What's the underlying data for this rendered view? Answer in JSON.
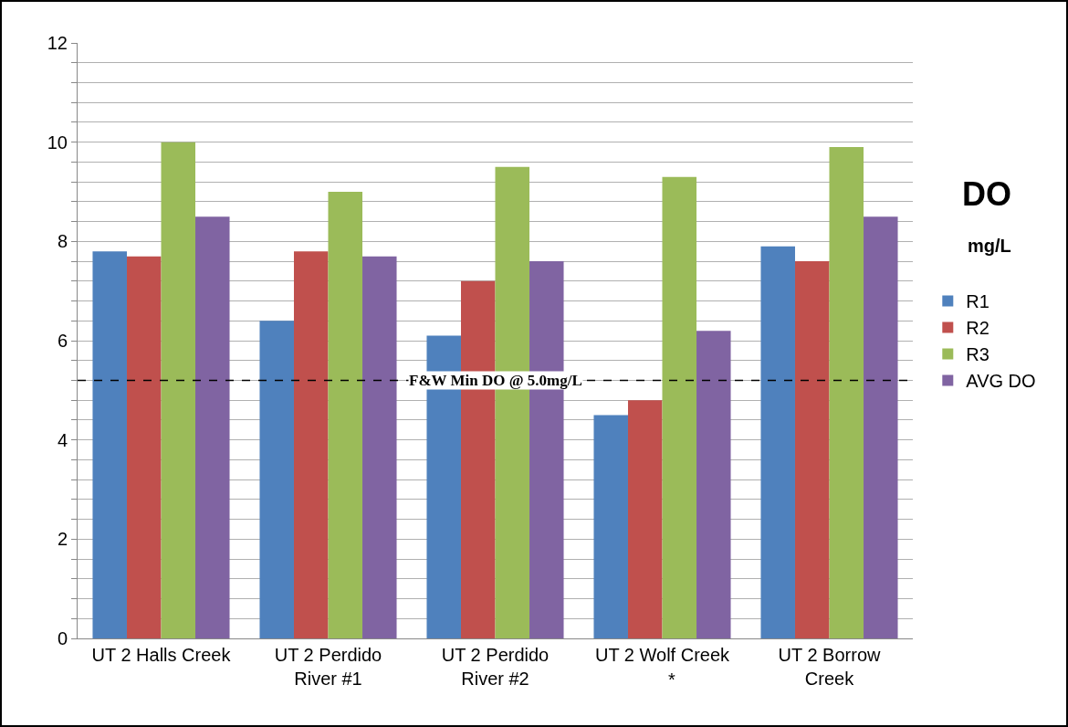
{
  "chart_data": {
    "type": "bar",
    "categories": [
      "UT 2 Halls Creek",
      "UT 2 Perdido River #1",
      "UT 2 Perdido River #2",
      "UT 2 Wolf Creek",
      "UT 2 Borrow Creek"
    ],
    "series": [
      {
        "name": "R1",
        "color": "#4f81bd",
        "values": [
          7.8,
          6.4,
          6.1,
          4.5,
          7.9
        ]
      },
      {
        "name": "R2",
        "color": "#c0504d",
        "values": [
          7.7,
          7.8,
          7.2,
          4.8,
          7.6
        ]
      },
      {
        "name": "R3",
        "color": "#9bbb59",
        "values": [
          10.0,
          9.0,
          9.5,
          9.3,
          9.9
        ]
      },
      {
        "name": "AVG DO",
        "color": "#8064a2",
        "values": [
          8.5,
          7.7,
          7.6,
          6.2,
          8.5
        ]
      }
    ],
    "ylim": [
      0,
      12
    ],
    "yticks": [
      0,
      {
        "value": 0.4,
        "label": null
      },
      {
        "value": 0.8,
        "label": null
      },
      {
        "value": 1.2,
        "label": null
      },
      {
        "value": 1.6,
        "label": null
      },
      2,
      {
        "value": 2.4,
        "label": null
      },
      {
        "value": 2.8,
        "label": null
      },
      {
        "value": 3.2,
        "label": null
      },
      {
        "value": 3.6,
        "label": null
      },
      4,
      {
        "value": 4.4,
        "label": null
      },
      {
        "value": 4.8,
        "label": null
      },
      {
        "value": 5.2,
        "label": null
      },
      {
        "value": 5.6,
        "label": null
      },
      6,
      {
        "value": 6.4,
        "label": null
      },
      {
        "value": 6.8,
        "label": null
      },
      {
        "value": 7.2,
        "label": null
      },
      {
        "value": 7.6,
        "label": null
      },
      8,
      {
        "value": 8.4,
        "label": null
      },
      {
        "value": 8.8,
        "label": null
      },
      {
        "value": 9.2,
        "label": null
      },
      {
        "value": 9.6,
        "label": null
      },
      10,
      {
        "value": 10.4,
        "label": null
      },
      {
        "value": 10.8,
        "label": null
      },
      {
        "value": 11.2,
        "label": null
      },
      {
        "value": 11.6,
        "label": null
      },
      12
    ],
    "grid": "y",
    "legend": "right",
    "ref_lines": [
      {
        "axis": "y",
        "value": 5.2,
        "label": "F&W Min DO @ 5.0mg/L",
        "color": "#000000",
        "line_style": "dashed"
      }
    ],
    "annotations": [
      "DO",
      "mg/L",
      {
        "text": "*",
        "x": "UT 2 Wolf Creek",
        "y": 0
      }
    ]
  }
}
